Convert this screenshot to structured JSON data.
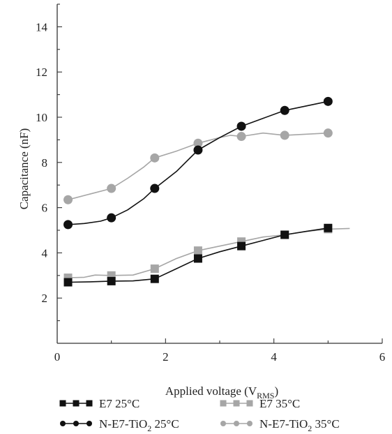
{
  "chart_data": {
    "type": "line",
    "xlabel": "Applied voltage (V",
    "xlabel_sub": "RMS",
    "xlabel_end": ")",
    "ylabel": "Capacitance (nF)",
    "xlim": [
      0,
      6
    ],
    "ylim": [
      0,
      15
    ],
    "x_ticks": [
      0,
      2,
      4,
      6
    ],
    "y_ticks": [
      2,
      4,
      6,
      8,
      10,
      12,
      14
    ],
    "grid": false,
    "legend_position": "bottom",
    "series": [
      {
        "name": "E7 25°C",
        "color": "#111111",
        "marker": "square",
        "x": [
          0.2,
          1.0,
          1.8,
          2.6,
          3.4,
          4.2,
          5.0
        ],
        "y": [
          2.7,
          2.75,
          2.85,
          3.75,
          4.3,
          4.8,
          5.1
        ],
        "curve": [
          [
            0.2,
            2.7
          ],
          [
            0.6,
            2.72
          ],
          [
            1.0,
            2.75
          ],
          [
            1.4,
            2.76
          ],
          [
            1.8,
            2.85
          ],
          [
            2.2,
            3.3
          ],
          [
            2.6,
            3.75
          ],
          [
            3.0,
            4.05
          ],
          [
            3.4,
            4.3
          ],
          [
            3.8,
            4.55
          ],
          [
            4.2,
            4.8
          ],
          [
            4.6,
            4.95
          ],
          [
            5.0,
            5.1
          ]
        ]
      },
      {
        "name": "E7 35°C",
        "color": "#a6a6a6",
        "marker": "square",
        "x": [
          0.2,
          1.0,
          1.8,
          2.6,
          3.4,
          4.2,
          5.0
        ],
        "y": [
          2.9,
          3.0,
          3.3,
          4.1,
          4.5,
          4.8,
          5.05
        ],
        "curve": [
          [
            0.2,
            2.9
          ],
          [
            0.5,
            2.92
          ],
          [
            0.7,
            3.02
          ],
          [
            1.0,
            3.0
          ],
          [
            1.4,
            3.02
          ],
          [
            1.8,
            3.3
          ],
          [
            2.2,
            3.75
          ],
          [
            2.6,
            4.1
          ],
          [
            3.0,
            4.3
          ],
          [
            3.4,
            4.5
          ],
          [
            3.8,
            4.7
          ],
          [
            4.2,
            4.8
          ],
          [
            4.6,
            4.95
          ],
          [
            5.0,
            5.05
          ],
          [
            5.4,
            5.08
          ]
        ]
      },
      {
        "name": "N-E7-TiO₂ 25°C",
        "name_base": "N-E7-TiO",
        "name_sub": "2",
        "name_end": " 25°C",
        "color": "#111111",
        "marker": "circle",
        "x": [
          0.2,
          1.0,
          1.8,
          2.6,
          3.4,
          4.2,
          5.0
        ],
        "y": [
          5.25,
          5.55,
          6.85,
          8.55,
          9.6,
          10.3,
          10.7
        ],
        "curve": [
          [
            0.2,
            5.25
          ],
          [
            0.5,
            5.3
          ],
          [
            0.8,
            5.4
          ],
          [
            1.0,
            5.55
          ],
          [
            1.3,
            5.9
          ],
          [
            1.6,
            6.4
          ],
          [
            1.8,
            6.85
          ],
          [
            2.2,
            7.6
          ],
          [
            2.6,
            8.55
          ],
          [
            3.0,
            9.1
          ],
          [
            3.4,
            9.6
          ],
          [
            3.8,
            9.95
          ],
          [
            4.2,
            10.3
          ],
          [
            4.6,
            10.5
          ],
          [
            5.0,
            10.7
          ]
        ]
      },
      {
        "name": "N-E7-TiO₂ 35°C",
        "name_base": "N-E7-TiO",
        "name_sub": "2",
        "name_end": " 35°C",
        "color": "#a6a6a6",
        "marker": "circle",
        "x": [
          0.2,
          1.0,
          1.8,
          2.6,
          3.4,
          4.2,
          5.0
        ],
        "y": [
          6.35,
          6.85,
          8.2,
          8.85,
          9.15,
          9.2,
          9.3
        ],
        "curve": [
          [
            0.2,
            6.35
          ],
          [
            0.6,
            6.6
          ],
          [
            1.0,
            6.85
          ],
          [
            1.3,
            7.3
          ],
          [
            1.6,
            7.8
          ],
          [
            1.8,
            8.2
          ],
          [
            2.2,
            8.5
          ],
          [
            2.6,
            8.85
          ],
          [
            3.0,
            9.1
          ],
          [
            3.2,
            9.2
          ],
          [
            3.4,
            9.15
          ],
          [
            3.8,
            9.3
          ],
          [
            4.0,
            9.25
          ],
          [
            4.2,
            9.2
          ],
          [
            4.6,
            9.25
          ],
          [
            5.0,
            9.3
          ]
        ]
      }
    ]
  }
}
